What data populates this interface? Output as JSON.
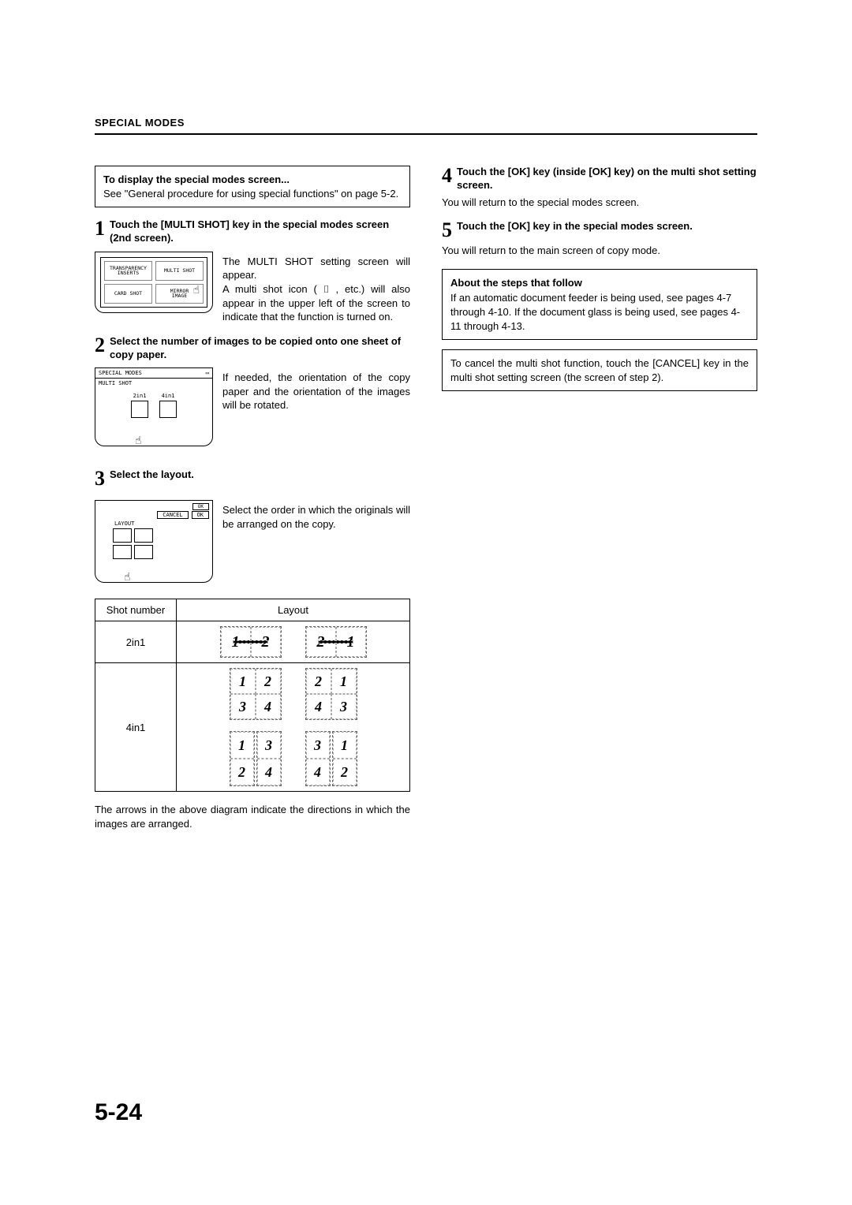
{
  "header": {
    "section_title": "SPECIAL MODES"
  },
  "intro_box": {
    "title": "To display the special modes screen...",
    "body": "See \"General procedure for using special functions\" on page 5-2."
  },
  "steps_left": [
    {
      "num": "1",
      "title": "Touch the [MULTI SHOT] key in the special modes screen (2nd screen).",
      "body": "The MULTI SHOT setting screen will appear.\nA multi shot icon ( ⌷ , etc.) will also appear in the upper left of the screen to indicate that the function is turned on."
    },
    {
      "num": "2",
      "title": "Select the number of images to be copied onto one sheet of copy paper.",
      "body": "If needed, the orientation of the copy paper and the orientation of the images will be rotated."
    },
    {
      "num": "3",
      "title": "Select the layout.",
      "body": "Select the order in which the originals will be arranged on the copy."
    }
  ],
  "steps_right": [
    {
      "num": "4",
      "title": "Touch the [OK] key (inside [OK] key) on the multi shot setting screen.",
      "body": "You will return to the special modes screen."
    },
    {
      "num": "5",
      "title": "Touch the [OK] key in the special modes screen.",
      "body": "You will return to the main screen of copy mode."
    }
  ],
  "about_box": {
    "title": "About the steps that follow",
    "body": "If an automatic document feeder is being used, see pages 4-7 through 4-10. If the document glass is being used, see pages 4-11 through 4-13."
  },
  "cancel_box": {
    "body": "To cancel the multi shot function, touch the [CANCEL] key in the multi shot setting screen (the screen of step 2)."
  },
  "mini1": {
    "btn1": "TRANSPARENCY\nINSERTS",
    "btn2": "MULTI SHOT",
    "btn3": "CARD SHOT",
    "btn4": "MIRROR\nIMAGE"
  },
  "mini2": {
    "top_left": "SPECIAL MODES",
    "label": "MULTI SHOT",
    "opt1": "2in1",
    "opt2": "4in1"
  },
  "mini3": {
    "cancel": "CANCEL",
    "ok": "OK",
    "ok2": "OK",
    "layout": "LAYOUT"
  },
  "layout_table": {
    "col1": "Shot number",
    "col2": "Layout",
    "row1_label": "2in1",
    "row2_label": "4in1"
  },
  "diagram_note": "The arrows in the above diagram indicate the directions in which the images are arranged.",
  "page_number": "5-24"
}
